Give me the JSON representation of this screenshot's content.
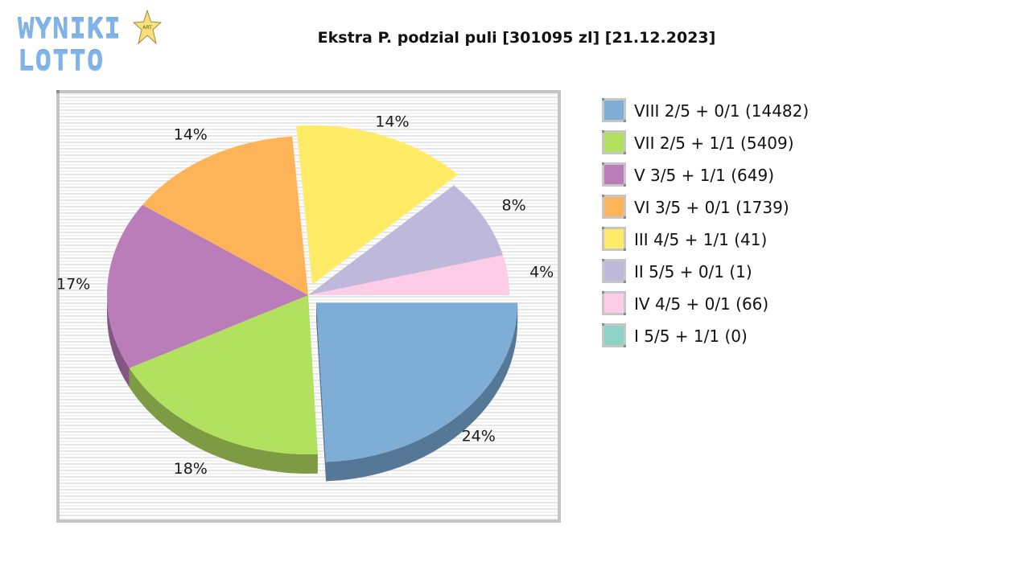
{
  "logo": {
    "text": "WYNIKI LOTTO",
    "star_text": "ART"
  },
  "chart_data": {
    "type": "pie",
    "title": "Ekstra P. podzial puli [301095 zl] [21.12.2023]",
    "style": "3d-exploded",
    "legend_position": "right",
    "categories": [
      "VIII 2/5 + 0/1 (14482)",
      "VII 2/5 + 1/1 (5409)",
      "V 3/5 + 1/1 (649)",
      "VI 3/5 + 0/1 (1739)",
      "III 4/5 + 1/1 (41)",
      "II 5/5 + 0/1 (1)",
      "IV 4/5 + 0/1 (66)",
      "I 5/5 + 1/1 (0)"
    ],
    "winners": [
      14482,
      5409,
      649,
      1739,
      41,
      1,
      66,
      0
    ],
    "values": [
      24,
      18,
      17,
      14,
      14,
      8,
      4,
      0
    ],
    "labels": [
      "24%",
      "18%",
      "17%",
      "14%",
      "14%",
      "8%",
      "4%",
      ""
    ],
    "colors": [
      "#7eaed5",
      "#b2e05f",
      "#bb7cba",
      "#fdb459",
      "#ffeb66",
      "#beb8da",
      "#fdcce6",
      "#8dd4c6"
    ],
    "side_colors": [
      "#557897",
      "#7c9b42",
      "#835782",
      "#b17e3e",
      "#b3a547",
      "#858198",
      "#b18fa1",
      "#63948a"
    ],
    "exploded": [
      true,
      false,
      false,
      false,
      true,
      false,
      false,
      false
    ]
  },
  "legend": {
    "items": [
      {
        "label": "VIII 2/5 + 0/1 (14482)",
        "color": "#7eaed5"
      },
      {
        "label": "VII 2/5 + 1/1 (5409)",
        "color": "#b2e05f"
      },
      {
        "label": "V 3/5 + 1/1 (649)",
        "color": "#bb7cba"
      },
      {
        "label": "VI 3/5 + 0/1 (1739)",
        "color": "#fdb459"
      },
      {
        "label": "III 4/5 + 1/1 (41)",
        "color": "#ffeb66"
      },
      {
        "label": "II 5/5 + 0/1 (1)",
        "color": "#beb8da"
      },
      {
        "label": "IV 4/5 + 0/1 (66)",
        "color": "#fdcce6"
      },
      {
        "label": "I 5/5 + 1/1 (0)",
        "color": "#8dd4c6"
      }
    ]
  }
}
